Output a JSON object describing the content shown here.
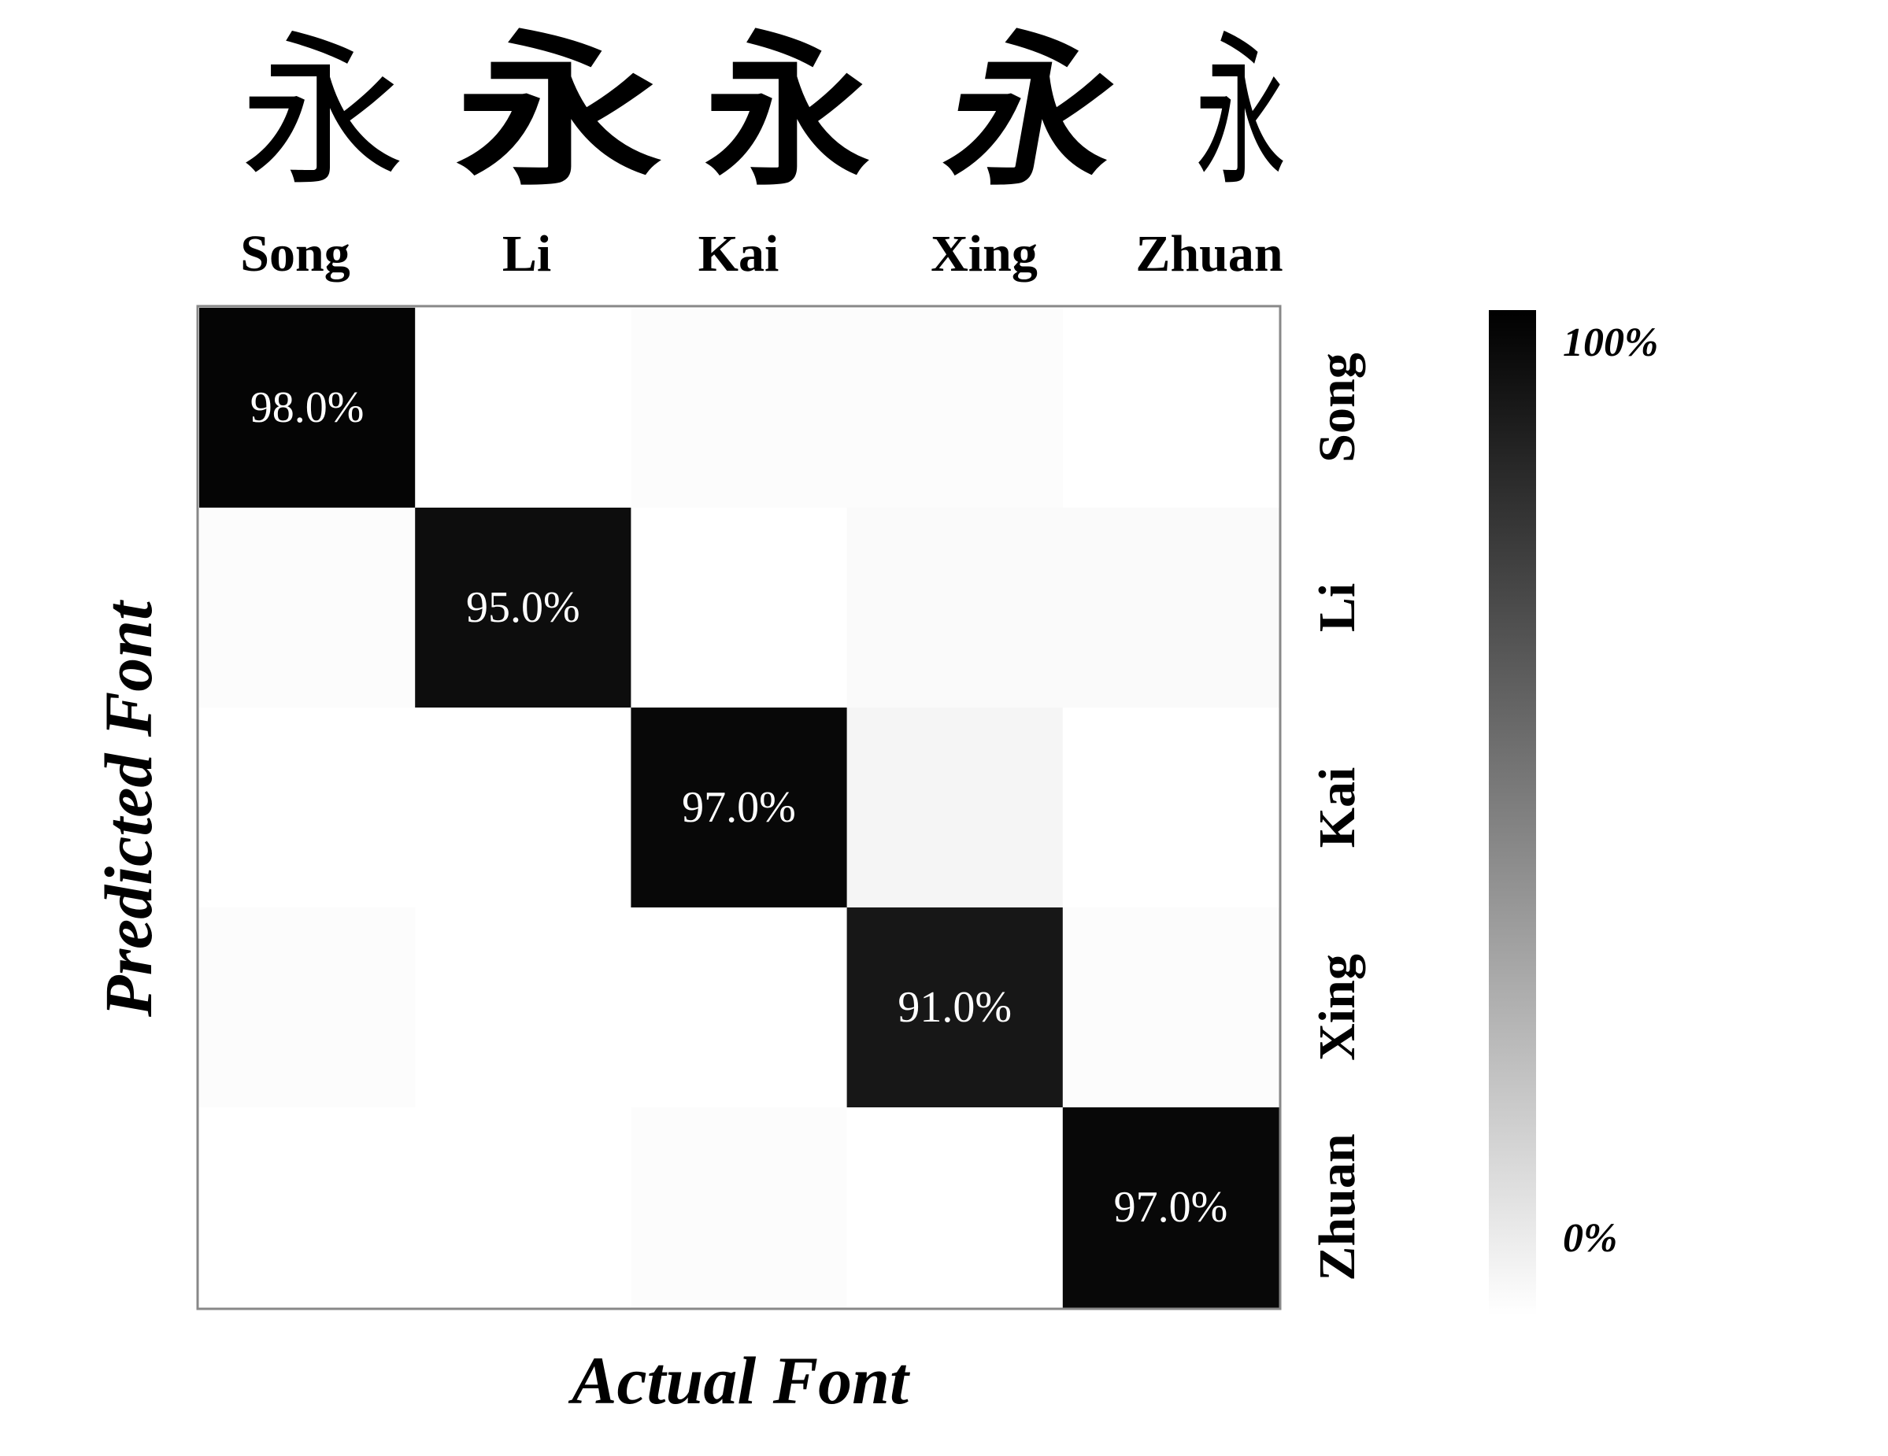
{
  "chart_data": {
    "type": "heatmap",
    "title": "",
    "xlabel": "Actual Font",
    "ylabel": "Predicted Font",
    "x_categories": [
      "Song",
      "Li",
      "Kai",
      "Xing",
      "Zhuan"
    ],
    "y_categories": [
      "Song",
      "Li",
      "Kai",
      "Xing",
      "Zhuan"
    ],
    "x_axis_position": "top",
    "y_axis_position": "right",
    "values": [
      [
        98.0,
        0.0,
        1.0,
        1.0,
        0.0
      ],
      [
        1.0,
        95.0,
        0.0,
        2.0,
        2.0
      ],
      [
        0.0,
        0.0,
        97.0,
        4.0,
        0.0
      ],
      [
        1.0,
        0.0,
        0.0,
        91.0,
        1.0
      ],
      [
        0.0,
        0.0,
        1.0,
        0.0,
        97.0
      ]
    ],
    "annotations": [
      {
        "row": 0,
        "col": 0,
        "label": "98.0%"
      },
      {
        "row": 1,
        "col": 1,
        "label": "95.0%"
      },
      {
        "row": 2,
        "col": 2,
        "label": "97.0%"
      },
      {
        "row": 3,
        "col": 3,
        "label": "91.0%"
      },
      {
        "row": 4,
        "col": 4,
        "label": "97.0%"
      }
    ],
    "colorbar": {
      "min_label": "0%",
      "max_label": "100%",
      "range": [
        0,
        100
      ],
      "colormap": "white-to-black"
    },
    "glyphs": {
      "character": "永",
      "styles": [
        "Song",
        "Li",
        "Kai",
        "Xing",
        "Zhuan"
      ]
    },
    "colors": {
      "low": "#ffffff",
      "high": "#000000",
      "annotation_text": "#ffffff",
      "frame": "#888888"
    }
  }
}
